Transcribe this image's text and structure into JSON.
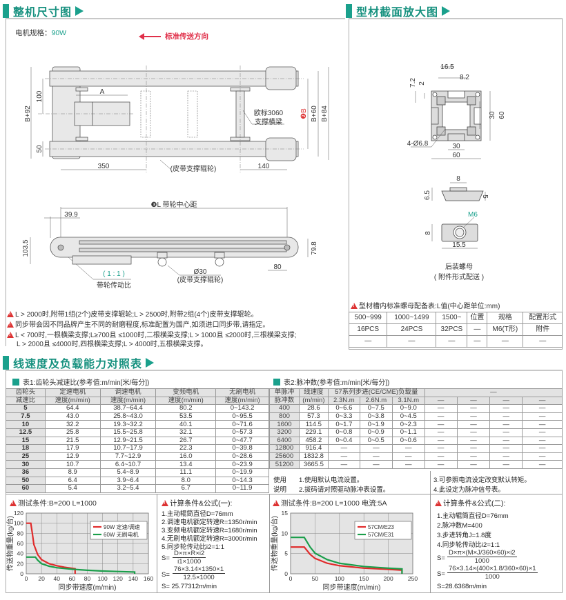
{
  "section1": {
    "title": "整机尺寸图",
    "motor_label": "电机规格：",
    "motor_value": "90W",
    "direction": "标准传送方向",
    "top_view": {
      "b92": "B+92",
      "d100": "100",
      "d50": "50",
      "a": "A",
      "d350": "350",
      "d140": "140",
      "roller": "(皮带支撑辊轮)",
      "beam1": "欧标3060",
      "beam2": "支撑横梁",
      "b": "❷B",
      "b60": "B+60",
      "b84": "B+84"
    },
    "side_view": {
      "l": "❸L 带轮中心距",
      "d39": "39.9",
      "d103": "103.5",
      "d79": "79.8",
      "d80": "80",
      "ratio": "( 1 : 1 )",
      "ratio_label": "带轮传动比",
      "d30": "Ø30",
      "roller": "(皮带支撑辊轮)"
    },
    "notes": [
      "L > 2000时,附带1组(2个)皮带支撑辊轮;L > 2500时,附带2组(4个)皮带支撑辊轮。",
      "同步带会因不同品牌产生不同的耐磨程度,标准配置为国产,如须进口同步带,请指定。",
      "L < 700时,一根横梁支撑;L≥700且 ≤1000时,二根横梁支撑;L > 1000且 ≤2000时,三根横梁支撑;",
      "L > 2000且 ≤4000时,四根横梁支撑;L > 4000时,五根横梁支撑。"
    ]
  },
  "section_profile": {
    "title": "型材截面放大图",
    "dims": {
      "d165": "16.5",
      "d82": "8.2",
      "d72": "7.2",
      "d2": "2",
      "d30v": "30",
      "d60v": "60",
      "hole": "4-Ø6.8",
      "d30h": "30",
      "d60h": "60",
      "n8": "8",
      "n65": "6.5",
      "n5": "5",
      "m6": "M6",
      "n8b": "8",
      "n155": "15.5"
    },
    "nut_title": "后装螺母",
    "nut_sub": "( 附件形式配送 )",
    "table_title": "型材槽内标准螺母配备表:L值(中心距单位:mm)",
    "table": [
      [
        "500~999",
        "1000~1499",
        "1500~",
        "位置",
        "规格",
        "配置形式"
      ],
      [
        "16PCS",
        "24PCS",
        "32PCS",
        "—",
        "M6(T形)",
        "附件"
      ],
      [
        "—",
        "—",
        "—",
        "—",
        "—",
        "—"
      ]
    ]
  },
  "section2": {
    "title": "线速度及负载能力对照表"
  },
  "table1": {
    "title": "表1:齿轮头减速比(参考值:m/min[米/每分])",
    "header1": [
      "齿轮头",
      "定速电机",
      "调速电机",
      "变频电机",
      "无刷电机"
    ],
    "header2": [
      "减速比",
      "速度(m/min)",
      "速度(m/min)",
      "速度(m/min)",
      "速度(m/min)"
    ],
    "rows": [
      [
        "5",
        "64.4",
        "38.7~64.4",
        "80.2",
        "0~143.2"
      ],
      [
        "7.5",
        "43.0",
        "25.8~43.0",
        "53.5",
        "0~95.5"
      ],
      [
        "10",
        "32.2",
        "19.3~32.2",
        "40.1",
        "0~71.6"
      ],
      [
        "12.5",
        "25.8",
        "15.5~25.8",
        "32.1",
        "0~57.3"
      ],
      [
        "15",
        "21.5",
        "12.9~21.5",
        "26.7",
        "0~47.7"
      ],
      [
        "18",
        "17.9",
        "10.7~17.9",
        "22.3",
        "0~39.8"
      ],
      [
        "25",
        "12.9",
        "7.7~12.9",
        "16.0",
        "0~28.6"
      ],
      [
        "30",
        "10.7",
        "6.4~10.7",
        "13.4",
        "0~23.9"
      ],
      [
        "36",
        "8.9",
        "5.4~8.9",
        "11.1",
        "0~19.9"
      ],
      [
        "50",
        "6.4",
        "3.9~6.4",
        "8.0",
        "0~14.3"
      ],
      [
        "60",
        "5.4",
        "3.2~5.4",
        "6.7",
        "0~11.9"
      ]
    ]
  },
  "table2": {
    "title": "表2:脉冲数(参考值:m/min[米/每分])",
    "header1": [
      "单脉冲",
      "线速度",
      "57系列步进(CE/CME)负载量",
      "—"
    ],
    "header2": [
      "脉冲数",
      "(m/min)",
      "2.3N.m",
      "2.6N.m",
      "3.1N.m",
      "—",
      "—",
      "—",
      "—"
    ],
    "rows": [
      [
        "400",
        "28.6",
        "0~6.6",
        "0~7.5",
        "0~9.0",
        "—",
        "—",
        "—",
        "—"
      ],
      [
        "800",
        "57.3",
        "0~3.3",
        "0~3.8",
        "0~4.5",
        "—",
        "—",
        "—",
        "—"
      ],
      [
        "1600",
        "114.5",
        "0~1.7",
        "0~1.9",
        "0~2.3",
        "—",
        "—",
        "—",
        "—"
      ],
      [
        "3200",
        "229.1",
        "0~0.8",
        "0~0.9",
        "0~1.1",
        "—",
        "—",
        "—",
        "—"
      ],
      [
        "6400",
        "458.2",
        "0~0.4",
        "0~0.5",
        "0~0.6",
        "—",
        "—",
        "—",
        "—"
      ],
      [
        "12800",
        "916.4",
        "—",
        "—",
        "—",
        "—",
        "—",
        "—",
        "—"
      ],
      [
        "25600",
        "1832.8",
        "—",
        "—",
        "—",
        "—",
        "—",
        "—",
        "—"
      ],
      [
        "51200",
        "3665.5",
        "—",
        "—",
        "—",
        "—",
        "—",
        "—",
        "—"
      ]
    ],
    "usage_label1": "使用",
    "usage_label2": "说明",
    "usage": [
      "1.使用默认电流设置。",
      "2.拔码请对照驱动脉冲表设置。",
      "3.可参照电流设定改变默认转矩。",
      "4.此设定为脉冲信号表。"
    ]
  },
  "formula1": {
    "title": "计算条件&公式(一):",
    "lines": [
      "1.主动辊筒直径D=76mm",
      "2.调速电机额定转速R=1350r/min",
      "3.变频电机额定转速R=1680r/min",
      "4.无刷电机额定转速R=3000r/min",
      "5.同步轮传动比i2=1:1"
    ],
    "s": "S=",
    "f1n": "D×π×R×i2",
    "f1d": "i1×1000",
    "f2n": "76×3.14×1350×1",
    "f2d": "12.5×1000",
    "result": "S= 25.77312m/min"
  },
  "formula2": {
    "title": "计算条件&公式(二):",
    "lines": [
      "1.主动辊筒直径D=76mm",
      "2.脉冲数M=400",
      "3.步进转角J=1.8度",
      "4.同步轮传动比i2=1:1"
    ],
    "s": "S=",
    "f1n": "D×π×(M×J/360×60)×i2",
    "f1d": "1000",
    "f2n": "76×3.14×(400×1.8/360×60)×1",
    "f2d": "1000",
    "result": "S=28.6368m/min"
  },
  "colors": {
    "accent": "#1aa08c",
    "red": "#e02b2b",
    "green": "#1a9e4a"
  },
  "chart_data": [
    {
      "type": "line",
      "title": "测试条件:B=200   L=1000",
      "xlabel": "同步带速度(m/min)",
      "ylabel": "传送物重量(kg/台)",
      "xlim": [
        0,
        160
      ],
      "ylim": [
        0,
        120
      ],
      "xticks": [
        0,
        20,
        40,
        60,
        80,
        100,
        120,
        140,
        160
      ],
      "yticks": [
        0,
        20,
        40,
        60,
        80,
        100,
        120
      ],
      "grid": true,
      "legend": "top-right",
      "series": [
        {
          "name": "90W 定速/调速",
          "color": "#e02b2b",
          "x": [
            0,
            6,
            8,
            10,
            15,
            20,
            30,
            40,
            50,
            64,
            64
          ],
          "y": [
            100,
            100,
            80,
            58,
            38,
            28,
            20,
            16,
            13,
            10,
            0
          ]
        },
        {
          "name": "60W 无刷电机",
          "color": "#1a9e4a",
          "x": [
            0,
            12,
            15,
            20,
            30,
            40,
            60,
            80,
            100,
            120,
            142,
            142
          ],
          "y": [
            33,
            33,
            27,
            20,
            15,
            12,
            9,
            7,
            5.5,
            4.5,
            3.5,
            0
          ]
        }
      ]
    },
    {
      "type": "line",
      "title": "测试条件:B=200   L=1000  电流:5A",
      "xlabel": "同步带速度(m/min)",
      "ylabel": "传送物重量(kg/台)",
      "xlim": [
        0,
        250
      ],
      "ylim": [
        0,
        15
      ],
      "xticks": [
        0,
        50,
        100,
        150,
        200,
        250
      ],
      "yticks": [
        0,
        5,
        10,
        15
      ],
      "grid": true,
      "legend": "top-right",
      "series": [
        {
          "name": "57CM/E23",
          "color": "#e02b2b",
          "x": [
            0,
            28,
            40,
            50,
            75,
            100,
            150,
            200,
            228,
            228
          ],
          "y": [
            6.6,
            6.6,
            4.8,
            3.8,
            2.6,
            2.0,
            1.4,
            1.1,
            0.9,
            0
          ]
        },
        {
          "name": "57CM/E31",
          "color": "#1a9e4a",
          "x": [
            0,
            28,
            40,
            50,
            75,
            100,
            150,
            200,
            228,
            228
          ],
          "y": [
            9.0,
            9.0,
            6.6,
            5.1,
            3.5,
            2.6,
            1.8,
            1.4,
            1.2,
            0
          ]
        }
      ]
    }
  ]
}
